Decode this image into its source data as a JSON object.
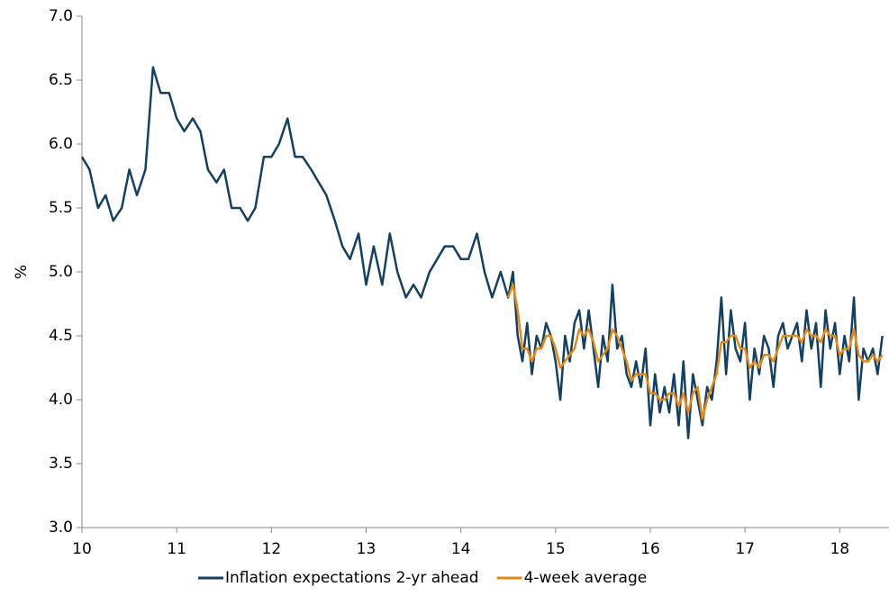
{
  "chart_data": {
    "type": "line",
    "y_label": "%",
    "xlim": [
      10,
      18.52
    ],
    "ylim": [
      3,
      7
    ],
    "xticks": [
      10,
      11,
      12,
      13,
      14,
      15,
      16,
      17,
      18
    ],
    "yticks": [
      {
        "value": 3,
        "label": "3.0"
      },
      {
        "value": 3.5,
        "label": "3.5"
      },
      {
        "value": 4,
        "label": "4.0"
      },
      {
        "value": 4.5,
        "label": "4.5"
      },
      {
        "value": 5,
        "label": "5.0"
      },
      {
        "value": 5.5,
        "label": "5.5"
      },
      {
        "value": 6,
        "label": "6.0"
      },
      {
        "value": 6.5,
        "label": "6.5"
      },
      {
        "value": 7,
        "label": "7.0"
      }
    ],
    "grid": false,
    "legend": "bottom",
    "series": [
      {
        "name": "Inflation expectations 2-yr ahead",
        "color": "#15405e",
        "x": [
          10,
          10.08,
          10.17,
          10.25,
          10.33,
          10.42,
          10.5,
          10.58,
          10.67,
          10.75,
          10.83,
          10.92,
          11,
          11.08,
          11.17,
          11.25,
          11.33,
          11.42,
          11.5,
          11.58,
          11.67,
          11.75,
          11.83,
          11.92,
          12,
          12.08,
          12.17,
          12.25,
          12.33,
          12.42,
          12.5,
          12.58,
          12.67,
          12.75,
          12.83,
          12.92,
          13,
          13.08,
          13.17,
          13.25,
          13.33,
          13.42,
          13.5,
          13.58,
          13.67,
          13.75,
          13.83,
          13.92,
          14,
          14.08,
          14.17,
          14.25,
          14.33,
          14.42,
          14.5,
          14.55,
          14.6,
          14.65,
          14.7,
          14.75,
          14.8,
          14.85,
          14.9,
          14.95,
          15,
          15.05,
          15.1,
          15.15,
          15.2,
          15.25,
          15.3,
          15.35,
          15.4,
          15.45,
          15.5,
          15.55,
          15.6,
          15.65,
          15.7,
          15.75,
          15.8,
          15.85,
          15.9,
          15.95,
          16,
          16.05,
          16.1,
          16.15,
          16.2,
          16.25,
          16.3,
          16.35,
          16.4,
          16.45,
          16.5,
          16.55,
          16.6,
          16.65,
          16.7,
          16.75,
          16.8,
          16.85,
          16.9,
          16.95,
          17,
          17.05,
          17.1,
          17.15,
          17.2,
          17.25,
          17.3,
          17.35,
          17.4,
          17.45,
          17.5,
          17.55,
          17.6,
          17.65,
          17.7,
          17.75,
          17.8,
          17.85,
          17.9,
          17.95,
          18,
          18.05,
          18.1,
          18.15,
          18.2,
          18.25,
          18.3,
          18.35,
          18.4,
          18.45
        ],
        "values": [
          5.9,
          5.8,
          5.5,
          5.6,
          5.4,
          5.5,
          5.8,
          5.6,
          5.8,
          6.6,
          6.4,
          6.4,
          6.2,
          6.1,
          6.2,
          6.1,
          5.8,
          5.7,
          5.8,
          5.5,
          5.5,
          5.4,
          5.5,
          5.9,
          5.9,
          6.0,
          6.2,
          5.9,
          5.9,
          5.8,
          5.7,
          5.6,
          5.4,
          5.2,
          5.1,
          5.3,
          4.9,
          5.2,
          4.9,
          5.3,
          5.0,
          4.8,
          4.9,
          4.8,
          5.0,
          5.1,
          5.2,
          5.2,
          5.1,
          5.1,
          5.3,
          5.0,
          4.8,
          5.0,
          4.8,
          5.0,
          4.5,
          4.3,
          4.6,
          4.2,
          4.5,
          4.4,
          4.6,
          4.5,
          4.3,
          4.0,
          4.5,
          4.3,
          4.6,
          4.7,
          4.4,
          4.7,
          4.4,
          4.1,
          4.5,
          4.3,
          4.9,
          4.4,
          4.5,
          4.2,
          4.1,
          4.3,
          4.1,
          4.4,
          3.8,
          4.2,
          3.9,
          4.1,
          3.9,
          4.2,
          3.8,
          4.3,
          3.7,
          4.2,
          4.0,
          3.8,
          4.1,
          4.0,
          4.3,
          4.8,
          4.2,
          4.7,
          4.4,
          4.3,
          4.6,
          4.0,
          4.4,
          4.2,
          4.5,
          4.4,
          4.1,
          4.5,
          4.6,
          4.4,
          4.5,
          4.6,
          4.3,
          4.7,
          4.4,
          4.6,
          4.1,
          4.7,
          4.4,
          4.6,
          4.2,
          4.5,
          4.3,
          4.8,
          4.0,
          4.4,
          4.3,
          4.4,
          4.2,
          4.5
        ]
      },
      {
        "name": "4-week average",
        "color": "#e08a1e",
        "x": [
          14.5,
          14.55,
          14.6,
          14.65,
          14.7,
          14.75,
          14.8,
          14.85,
          14.9,
          14.95,
          15,
          15.05,
          15.1,
          15.15,
          15.2,
          15.25,
          15.3,
          15.35,
          15.4,
          15.45,
          15.5,
          15.55,
          15.6,
          15.65,
          15.7,
          15.75,
          15.8,
          15.85,
          15.9,
          15.95,
          16,
          16.05,
          16.1,
          16.15,
          16.2,
          16.25,
          16.3,
          16.35,
          16.4,
          16.45,
          16.5,
          16.55,
          16.6,
          16.65,
          16.7,
          16.75,
          16.8,
          16.85,
          16.9,
          16.95,
          17,
          17.05,
          17.1,
          17.15,
          17.2,
          17.25,
          17.3,
          17.35,
          17.4,
          17.45,
          17.5,
          17.55,
          17.6,
          17.65,
          17.7,
          17.75,
          17.8,
          17.85,
          17.9,
          17.95,
          18,
          18.05,
          18.1,
          18.15,
          18.2,
          18.25,
          18.3,
          18.35,
          18.4,
          18.45
        ],
        "values": [
          4.8,
          4.9,
          4.7,
          4.4,
          4.4,
          4.3,
          4.4,
          4.4,
          4.5,
          4.5,
          4.4,
          4.25,
          4.3,
          4.35,
          4.4,
          4.55,
          4.5,
          4.55,
          4.45,
          4.3,
          4.35,
          4.4,
          4.55,
          4.5,
          4.4,
          4.3,
          4.15,
          4.2,
          4.2,
          4.2,
          4.05,
          4.05,
          4.0,
          4.0,
          4.05,
          4.05,
          3.95,
          4.05,
          3.9,
          4.05,
          4.1,
          3.85,
          4.0,
          4.1,
          4.2,
          4.45,
          4.45,
          4.5,
          4.5,
          4.4,
          4.4,
          4.25,
          4.3,
          4.25,
          4.35,
          4.35,
          4.3,
          4.4,
          4.5,
          4.5,
          4.5,
          4.5,
          4.45,
          4.55,
          4.5,
          4.5,
          4.45,
          4.55,
          4.5,
          4.5,
          4.35,
          4.4,
          4.4,
          4.55,
          4.35,
          4.3,
          4.3,
          4.35,
          4.3,
          4.35
        ]
      }
    ]
  }
}
